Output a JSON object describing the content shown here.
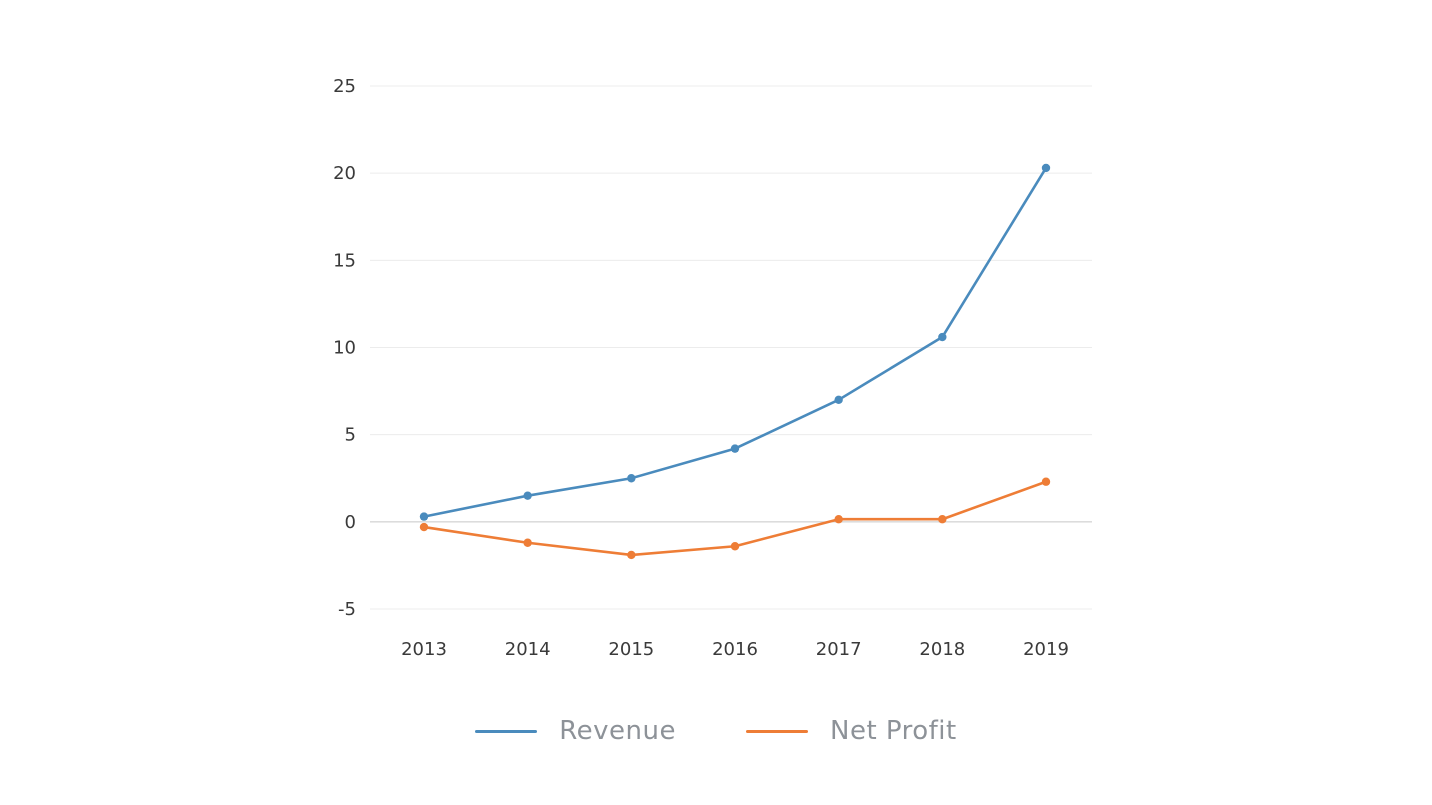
{
  "page": {
    "background": "#ffffff"
  },
  "chart_data": {
    "type": "line",
    "title": "",
    "xlabel": "",
    "ylabel": "",
    "categories": [
      "2013",
      "2014",
      "2015",
      "2016",
      "2017",
      "2018",
      "2019"
    ],
    "series": [
      {
        "name": "Revenue",
        "color": "#4a8bbd",
        "values": [
          0.3,
          1.5,
          2.5,
          4.2,
          7.0,
          10.6,
          20.3
        ]
      },
      {
        "name": "Net Profit",
        "color": "#ee7d36",
        "values": [
          -0.3,
          -1.2,
          -1.9,
          -1.4,
          0.15,
          0.15,
          2.3
        ]
      }
    ],
    "ylim": [
      -5,
      25
    ],
    "ytick_step": 5,
    "ytick_labels": [
      "-5",
      "0",
      "5",
      "10",
      "15",
      "20",
      "25"
    ],
    "grid": true,
    "zero_line": true,
    "legend_position": "bottom",
    "colors": {
      "gridline": "#ececec",
      "zero_line": "#c8c8c8",
      "tick_text": "#3a3a3a",
      "legend_text": "#8d9298"
    }
  }
}
